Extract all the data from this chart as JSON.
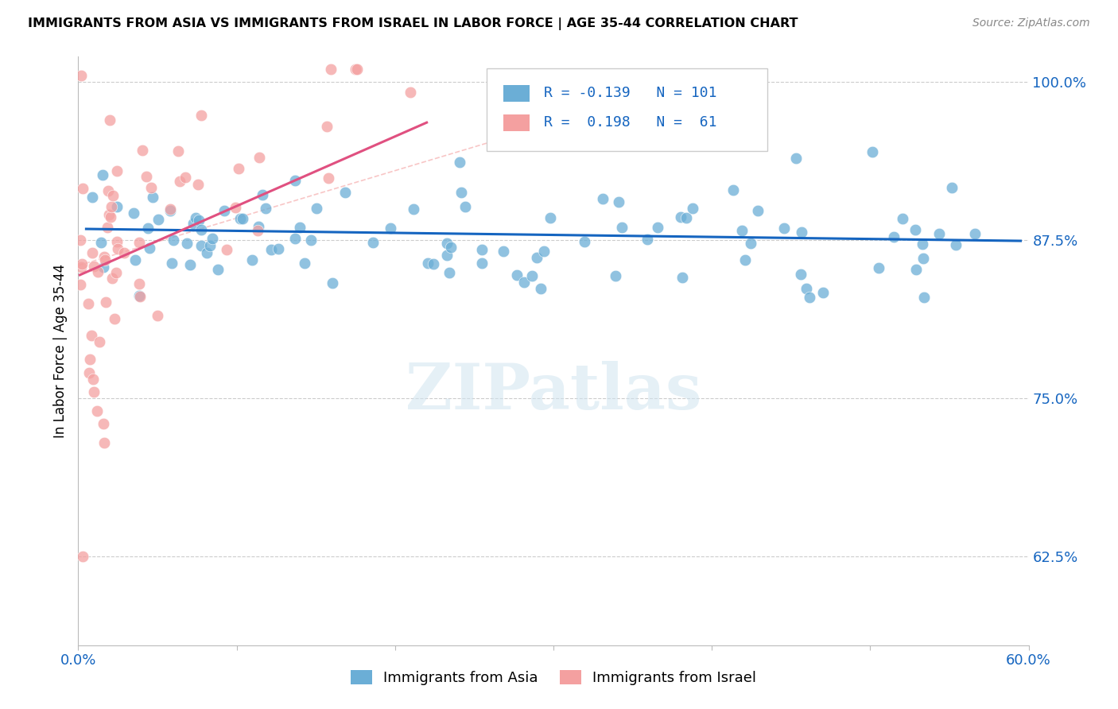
{
  "title": "IMMIGRANTS FROM ASIA VS IMMIGRANTS FROM ISRAEL IN LABOR FORCE | AGE 35-44 CORRELATION CHART",
  "source": "Source: ZipAtlas.com",
  "ylabel": "In Labor Force | Age 35-44",
  "xlim": [
    0.0,
    0.6
  ],
  "ylim": [
    0.555,
    1.02
  ],
  "ytick_positions": [
    0.625,
    0.75,
    0.875,
    1.0
  ],
  "yticklabels": [
    "62.5%",
    "75.0%",
    "87.5%",
    "100.0%"
  ],
  "R_asia": -0.139,
  "N_asia": 101,
  "R_israel": 0.198,
  "N_israel": 61,
  "color_asia": "#6baed6",
  "color_israel": "#f4a0a0",
  "trend_color_asia": "#1565c0",
  "trend_color_israel": "#e05080",
  "diag_color": "#f4a0a0",
  "legend_label_asia": "Immigrants from Asia",
  "legend_label_israel": "Immigrants from Israel"
}
